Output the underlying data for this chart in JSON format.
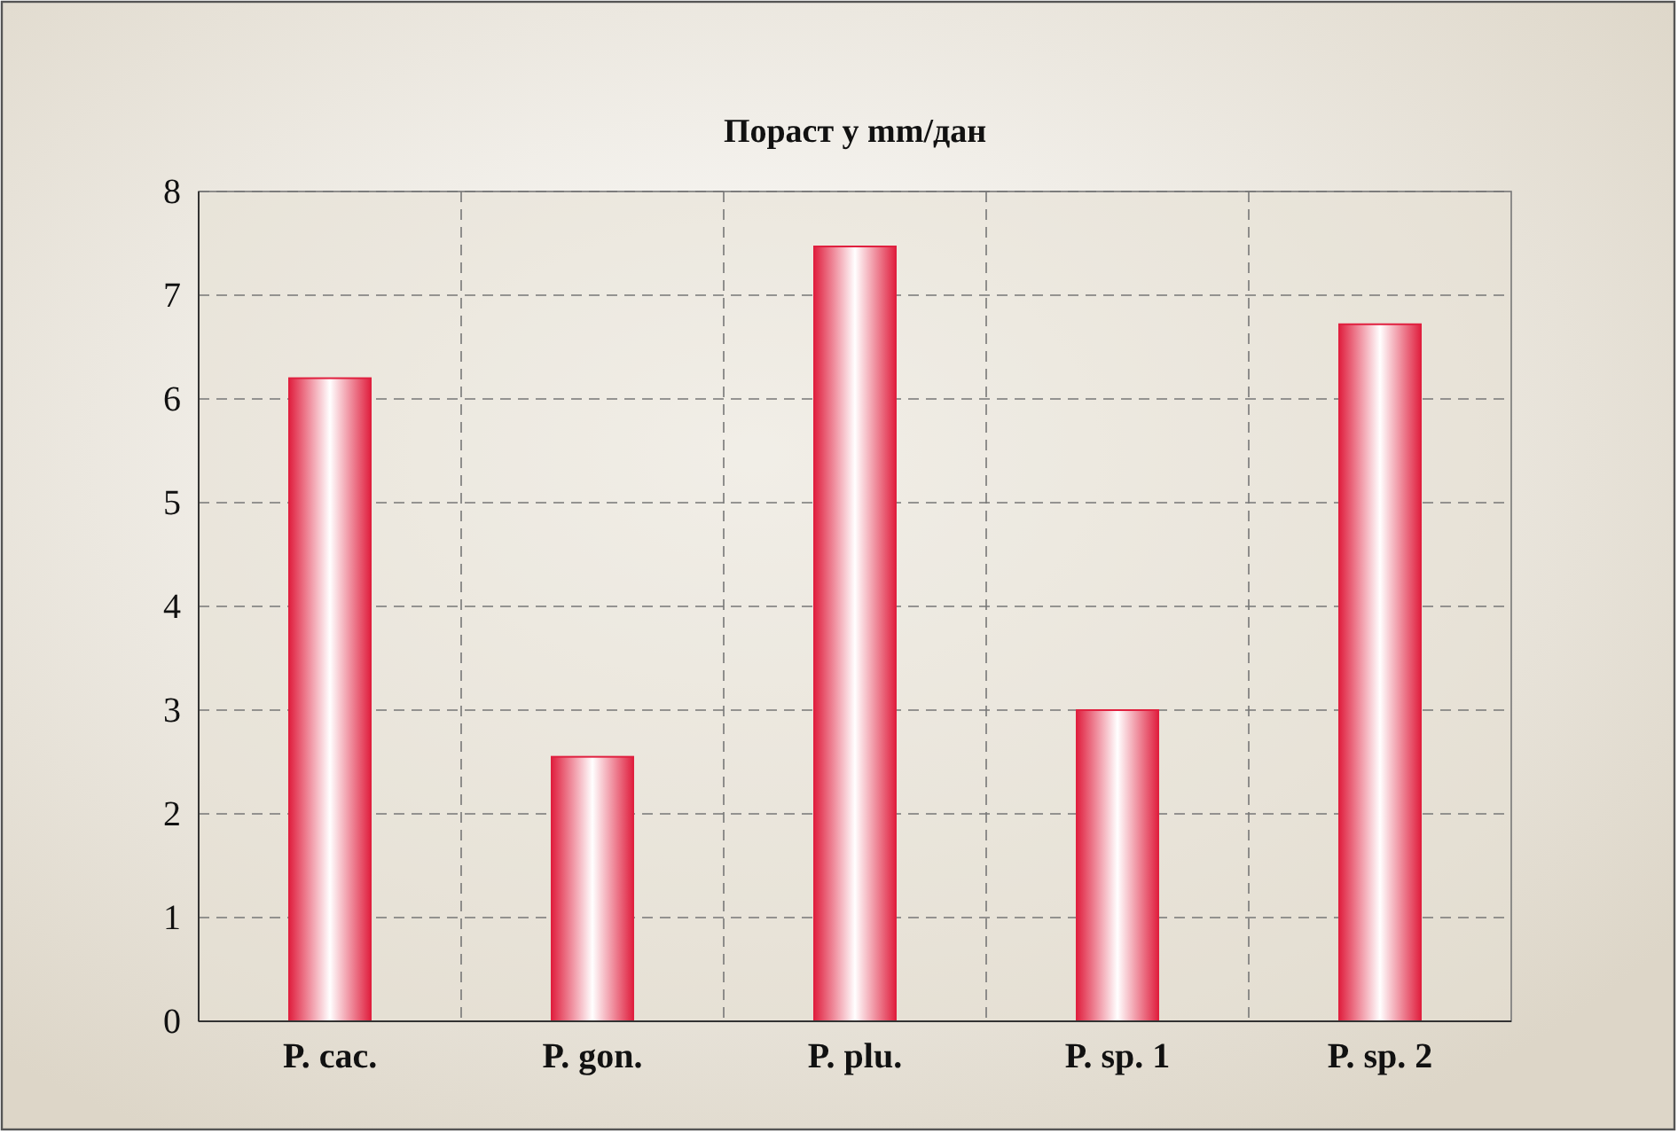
{
  "chart_data": {
    "type": "bar",
    "title": "Пораст у mm/дан",
    "categories": [
      "P. cac.",
      "P. gon.",
      "P. plu.",
      "P. sp. 1",
      "P. sp. 2"
    ],
    "values": [
      6.2,
      2.55,
      7.47,
      3.0,
      6.72
    ],
    "color": "#e0203f",
    "ylim": [
      0,
      8
    ],
    "yticks": [
      0,
      1,
      2,
      3,
      4,
      5,
      6,
      7,
      8
    ],
    "grid": true
  }
}
